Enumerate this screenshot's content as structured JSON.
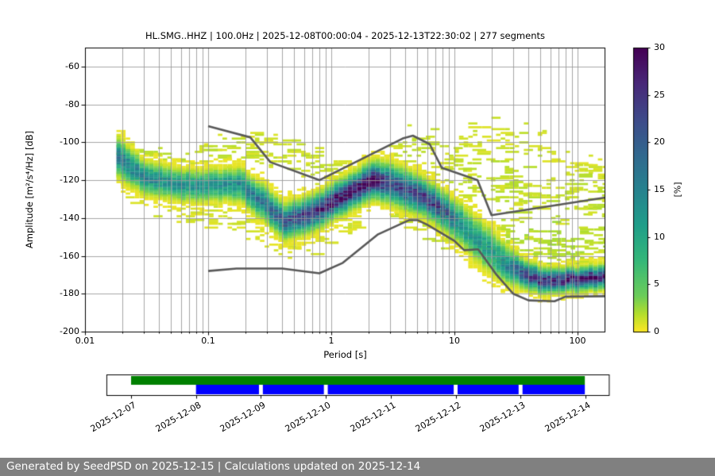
{
  "chart_data": {
    "type": "heatmap",
    "title": "HL.SMG..HHZ | 100.0Hz | 2025-12-08T00:00:04 - 2025-12-13T22:30:02 | 277 segments",
    "xlabel": "Period [s]",
    "ylabel": "Amplitude [m²/s⁴/Hz] [dB]",
    "x_scale": "log",
    "xlim": [
      0.01,
      168
    ],
    "ylim": [
      -200,
      -50
    ],
    "grid": true,
    "x_tick_labels": [
      "0.01",
      "0.1",
      "1",
      "10",
      "100"
    ],
    "x_tick_values": [
      0.01,
      0.1,
      1,
      10,
      100
    ],
    "y_tick_values": [
      -60,
      -80,
      -100,
      -120,
      -140,
      -160,
      -180,
      -200
    ],
    "colorbar": {
      "label": "[%]",
      "min": 0,
      "max": 30,
      "tick_values": [
        0,
        5,
        10,
        15,
        20,
        25,
        30
      ],
      "colormap": "viridis_reversed"
    },
    "histogram": {
      "period_range": [
        0.018,
        168
      ],
      "bins_per_decade": 26.6,
      "db_bin_width": 1,
      "ridge": [
        [
          0.018,
          -108,
          16,
          5.0
        ],
        [
          0.028,
          -118,
          15,
          4.2
        ],
        [
          0.05,
          -122,
          13,
          4.0
        ],
        [
          0.08,
          -123,
          13,
          4.0
        ],
        [
          0.12,
          -122.5,
          13,
          4.0
        ],
        [
          0.17,
          -122,
          14,
          4.2
        ],
        [
          0.25,
          -130,
          17,
          4.4
        ],
        [
          0.4,
          -142,
          21,
          4.4
        ],
        [
          0.6,
          -138.5,
          24,
          4.4
        ],
        [
          0.8,
          -134.5,
          26,
          4.4
        ],
        [
          1.0,
          -131,
          28,
          4.4
        ],
        [
          1.5,
          -124.5,
          30,
          4.4
        ],
        [
          2.1,
          -120,
          30,
          4.6
        ],
        [
          2.8,
          -121,
          23,
          5.0
        ],
        [
          4.0,
          -126,
          22,
          5.0
        ],
        [
          5.5,
          -129,
          25,
          4.6
        ],
        [
          7.5,
          -134.5,
          23,
          4.6
        ],
        [
          10,
          -141.5,
          15,
          5.0
        ],
        [
          14,
          -150,
          12,
          5.5
        ],
        [
          20,
          -159,
          12,
          5.5
        ],
        [
          27,
          -165.5,
          16,
          4.5
        ],
        [
          35,
          -169.5,
          22,
          3.6
        ],
        [
          50,
          -172.5,
          26,
          3.2
        ],
        [
          70,
          -173,
          27,
          3.0
        ],
        [
          100,
          -172.5,
          27,
          3.0
        ],
        [
          135,
          -171.5,
          27,
          3.0
        ],
        [
          168,
          -170.5,
          26,
          3.0
        ]
      ],
      "clouds": [
        {
          "name": "hf-arcs",
          "points": [
            [
              0.06,
              -111
            ],
            [
              0.1,
              -106
            ],
            [
              0.2,
              -103
            ],
            [
              0.35,
              -105
            ],
            [
              0.6,
              -110
            ],
            [
              1.0,
              -115
            ],
            [
              1.6,
              -121
            ]
          ],
          "sigma": 4.5,
          "density": 0.28,
          "pct": 1.3
        },
        {
          "name": "mid-hump",
          "points": [
            [
              1.6,
              -116
            ],
            [
              2.5,
              -109
            ],
            [
              4,
              -101
            ],
            [
              5.5,
              -99.5
            ],
            [
              8,
              -106
            ],
            [
              13,
              -116
            ]
          ],
          "sigma": 4.5,
          "density": 0.26,
          "pct": 1.3
        },
        {
          "name": "long-period-peak",
          "points": [
            [
              5,
              -122
            ],
            [
              9,
              -110
            ],
            [
              14,
              -98
            ],
            [
              20,
              -94
            ],
            [
              28,
              -99
            ],
            [
              45,
              -107
            ],
            [
              80,
              -113
            ],
            [
              120,
              -116
            ],
            [
              168,
              -118
            ]
          ],
          "sigma": 5.5,
          "density": 0.22,
          "pct": 1.2
        },
        {
          "name": "long-period-body",
          "points": [
            [
              7,
              -131
            ],
            [
              12,
              -124
            ],
            [
              20,
              -121
            ],
            [
              35,
              -126
            ],
            [
              60,
              -131
            ],
            [
              100,
              -131
            ],
            [
              168,
              -128
            ]
          ],
          "sigma": 8,
          "density": 0.28,
          "pct": 1.4
        },
        {
          "name": "below-left",
          "points": [
            [
              0.018,
              -120
            ],
            [
              0.04,
              -131
            ],
            [
              0.09,
              -138
            ],
            [
              0.2,
              -144
            ],
            [
              0.4,
              -151
            ],
            [
              0.8,
              -149
            ],
            [
              1.6,
              -143
            ]
          ],
          "sigma": 5,
          "density": 0.22,
          "pct": 1.0
        },
        {
          "name": "below-mid",
          "points": [
            [
              3,
              -135
            ],
            [
              5,
              -141
            ],
            [
              8,
              -148
            ],
            [
              13,
              -155
            ],
            [
              22,
              -163
            ]
          ],
          "sigma": 4.5,
          "density": 0.3,
          "pct": 1.3
        },
        {
          "name": "right-above-band",
          "points": [
            [
              22,
              -146
            ],
            [
              35,
              -153
            ],
            [
              60,
              -158
            ],
            [
              100,
              -157
            ],
            [
              168,
              -153
            ]
          ],
          "sigma": 6,
          "density": 0.35,
          "pct": 1.8
        },
        {
          "name": "left-top-fringe",
          "points": [
            [
              0.018,
              -101
            ],
            [
              0.03,
              -106
            ],
            [
              0.06,
              -112
            ]
          ],
          "sigma": 3.5,
          "density": 0.35,
          "pct": 1.5
        }
      ]
    },
    "noise_models": {
      "color": "#595959",
      "high_noise_model": [
        [
          0.1,
          -91.5
        ],
        [
          0.22,
          -97.4
        ],
        [
          0.32,
          -110.5
        ],
        [
          0.8,
          -120
        ],
        [
          3.8,
          -98
        ],
        [
          4.6,
          -96.5
        ],
        [
          6.3,
          -101
        ],
        [
          7.9,
          -113.5
        ],
        [
          15.4,
          -120
        ],
        [
          20,
          -138.5
        ],
        [
          168,
          -129.2
        ]
      ],
      "low_noise_model": [
        [
          0.1,
          -168
        ],
        [
          0.17,
          -166.7
        ],
        [
          0.4,
          -166.7
        ],
        [
          0.8,
          -169.2
        ],
        [
          1.24,
          -163.7
        ],
        [
          2.4,
          -148.6
        ],
        [
          4.3,
          -141.1
        ],
        [
          5,
          -141.1
        ],
        [
          6,
          -143.5
        ],
        [
          10,
          -152.1
        ],
        [
          12,
          -157
        ],
        [
          15.6,
          -156.5
        ],
        [
          22,
          -170
        ],
        [
          30,
          -180
        ],
        [
          40,
          -183.5
        ],
        [
          65,
          -184
        ],
        [
          80,
          -181.5
        ],
        [
          168,
          -181.3
        ]
      ]
    }
  },
  "timeline": {
    "dates": [
      "2025-12-07",
      "2025-12-08",
      "2025-12-09",
      "2025-12-10",
      "2025-12-11",
      "2025-12-12",
      "2025-12-13",
      "2025-12-14"
    ],
    "axis_day_range": [
      -0.38,
      7.36
    ],
    "availability_bar": {
      "color": "#008000",
      "start_day": 0.0,
      "end_day": 6.99
    },
    "coverage_bar": {
      "color": "#0000ff",
      "segments_days": [
        [
          1.0,
          1.97
        ],
        [
          2.03,
          2.97
        ],
        [
          3.03,
          4.97
        ],
        [
          5.03,
          5.97
        ],
        [
          6.03,
          6.99
        ]
      ]
    }
  },
  "footer": {
    "text": "Generated by SeedPSD on 2025-12-15 | Calculations updated on 2025-12-14"
  }
}
